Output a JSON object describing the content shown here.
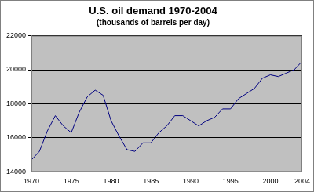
{
  "chart_data": {
    "type": "line",
    "title": "U.S. oil demand 1970-2004",
    "subtitle": "(thousands of barrels per day)",
    "x": [
      1970,
      1971,
      1972,
      1973,
      1974,
      1975,
      1976,
      1977,
      1978,
      1979,
      1980,
      1981,
      1982,
      1983,
      1984,
      1985,
      1986,
      1987,
      1988,
      1989,
      1990,
      1991,
      1992,
      1993,
      1994,
      1995,
      1996,
      1997,
      1998,
      1999,
      2000,
      2001,
      2002,
      2003,
      2004
    ],
    "values": [
      14700,
      15200,
      16400,
      17300,
      16700,
      16300,
      17500,
      18400,
      18800,
      18500,
      17000,
      16100,
      15300,
      15200,
      15700,
      15700,
      16300,
      16700,
      17300,
      17300,
      17000,
      16700,
      17000,
      17200,
      17700,
      17700,
      18300,
      18600,
      18900,
      19500,
      19700,
      19600,
      19800,
      20000,
      20500
    ],
    "color": "#000080",
    "xlim": [
      1970,
      2004
    ],
    "xticks": [
      1970,
      1975,
      1980,
      1985,
      1990,
      1995,
      2000,
      2004
    ],
    "ylim": [
      14000,
      22000
    ],
    "yticks": [
      14000,
      16000,
      18000,
      20000,
      22000
    ],
    "grid": "y"
  }
}
